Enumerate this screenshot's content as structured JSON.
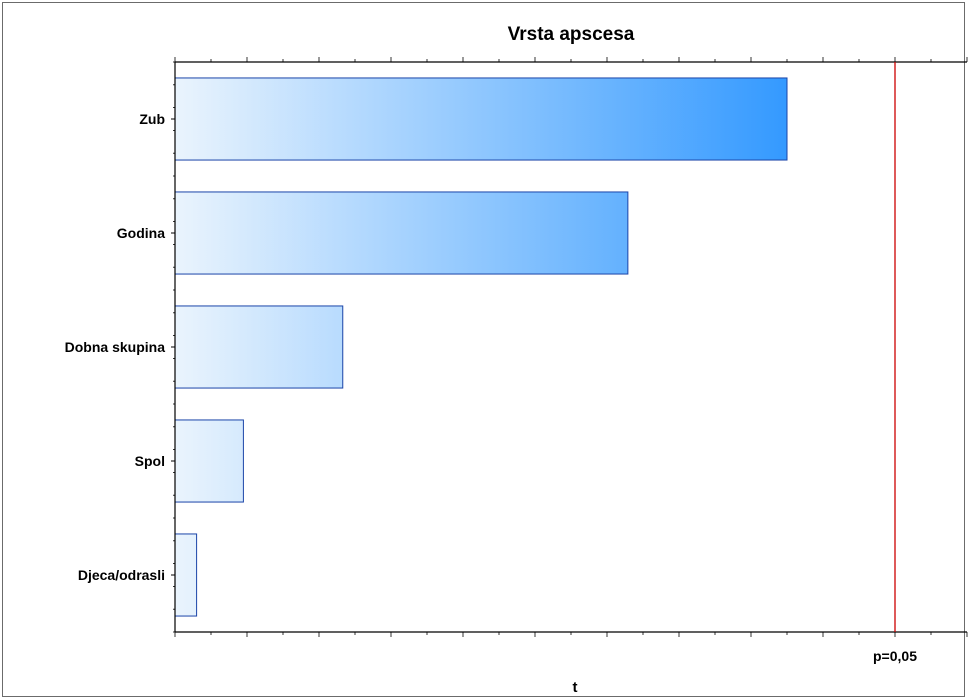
{
  "chart_data": {
    "type": "bar",
    "orientation": "horizontal",
    "title": "Vrsta apscesa",
    "xlabel": "t",
    "categories": [
      "Zub",
      "Godina",
      "Dobna skupina",
      "Spol",
      "Djeca/odrasli"
    ],
    "values": [
      0.85,
      0.629,
      0.233,
      0.095,
      0.03
    ],
    "xlim": [
      0,
      1.1
    ],
    "reference_line": {
      "value": 1.0,
      "label": "p=0,05",
      "color": "#cc0000"
    },
    "bar_gradient": {
      "from": "#eaf4fd",
      "to": "#3399ff"
    },
    "bar_border": "#1a44a8",
    "grid": false
  }
}
